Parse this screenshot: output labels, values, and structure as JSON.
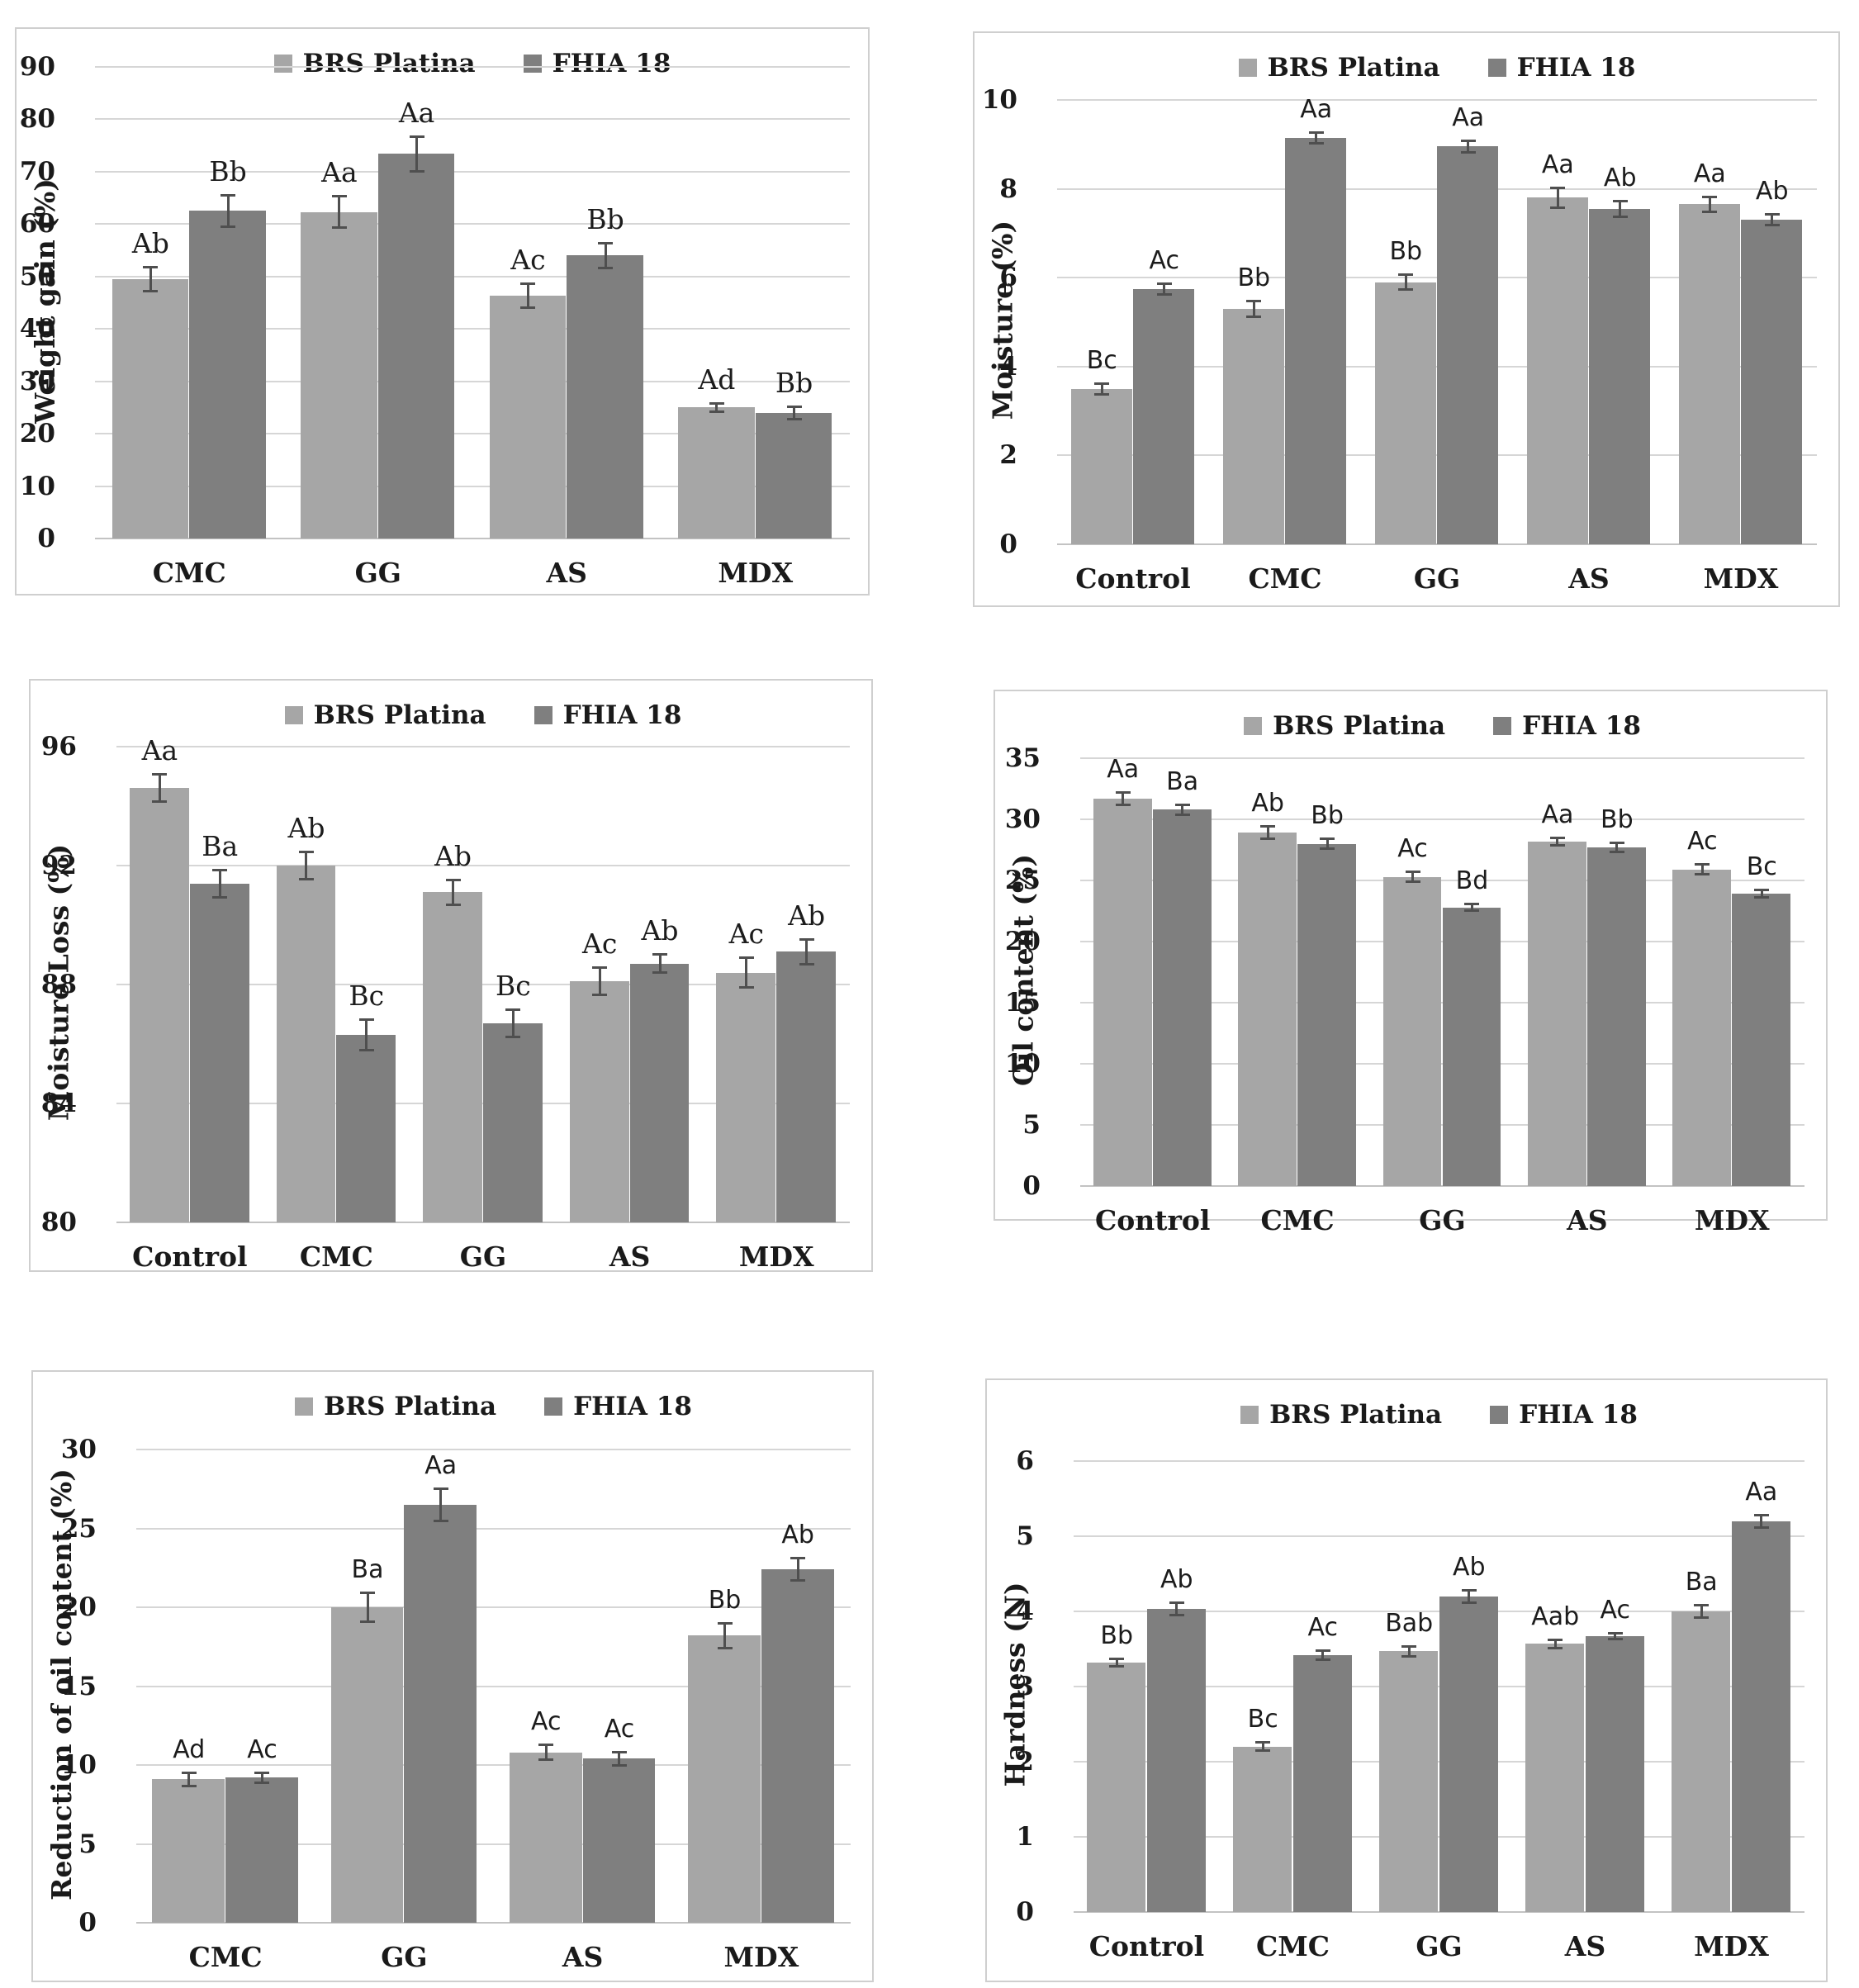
{
  "figure": {
    "description": "Six grouped bar charts comparing two banana cultivars across coating treatments",
    "series_colors": {
      "brs_platina": "#a6a6a6",
      "fhia_18": "#7f7f7f"
    },
    "error_bar_color": "#4f4f4f",
    "gridline_color": "#d6d6d6"
  },
  "chart_data": [
    {
      "type": "bar",
      "title": "",
      "ylabel": "Weight gain (%)",
      "xlabel": "",
      "ylim": [
        0,
        90
      ],
      "ystep": 10,
      "grid": true,
      "legend_position": "top-center",
      "annotation_font": "serif",
      "categories": [
        "CMC",
        "GG",
        "AS",
        "MDX"
      ],
      "series": [
        {
          "name": "BRS Platina",
          "color": "#a6a6a6",
          "values": [
            49.5,
            62.3,
            46.3,
            25.0
          ],
          "errors": [
            2.5,
            3.2,
            2.5,
            1.0
          ],
          "sig_labels": [
            "Ab",
            "Aa",
            "Ac",
            "Ad"
          ]
        },
        {
          "name": "FHIA 18",
          "color": "#7f7f7f",
          "values": [
            62.5,
            73.4,
            54.0,
            24.0
          ],
          "errors": [
            3.2,
            3.5,
            2.6,
            1.4
          ],
          "sig_labels": [
            "Bb",
            "Aa",
            "Bb",
            "Bb"
          ]
        }
      ]
    },
    {
      "type": "bar",
      "title": "",
      "ylabel": "Moisture (%)",
      "xlabel": "",
      "ylim": [
        0,
        10
      ],
      "ystep": 2,
      "grid": true,
      "legend_position": "top-center",
      "annotation_font": "sans",
      "categories": [
        "Control",
        "CMC",
        "GG",
        "AS",
        "MDX"
      ],
      "series": [
        {
          "name": "BRS Platina",
          "color": "#a6a6a6",
          "values": [
            3.5,
            5.3,
            5.9,
            7.8,
            7.65
          ],
          "errors": [
            0.15,
            0.2,
            0.2,
            0.25,
            0.2
          ],
          "sig_labels": [
            "Bc",
            "Bb",
            "Bb",
            "Aa",
            "Aa"
          ]
        },
        {
          "name": "FHIA 18",
          "color": "#7f7f7f",
          "values": [
            5.75,
            9.15,
            8.95,
            7.55,
            7.3
          ],
          "errors": [
            0.15,
            0.15,
            0.15,
            0.2,
            0.15
          ],
          "sig_labels": [
            "Ac",
            "Aa",
            "Aa",
            "Ab",
            "Ab"
          ]
        }
      ]
    },
    {
      "type": "bar",
      "title": "",
      "ylabel": "Moisture Loss (%)",
      "xlabel": "",
      "ylim": [
        80,
        96
      ],
      "ystep": 4,
      "grid": true,
      "legend_position": "top-center",
      "annotation_font": "serif",
      "categories": [
        "Control",
        "CMC",
        "GG",
        "AS",
        "MDX"
      ],
      "series": [
        {
          "name": "BRS Platina",
          "color": "#a6a6a6",
          "values": [
            94.6,
            92.0,
            91.1,
            88.1,
            88.4
          ],
          "errors": [
            0.5,
            0.5,
            0.45,
            0.5,
            0.55
          ],
          "sig_labels": [
            "Aa",
            "Ab",
            "Ab",
            "Ac",
            "Ac"
          ]
        },
        {
          "name": "FHIA 18",
          "color": "#7f7f7f",
          "values": [
            91.4,
            86.3,
            86.7,
            88.7,
            89.1
          ],
          "errors": [
            0.5,
            0.55,
            0.5,
            0.35,
            0.45
          ],
          "sig_labels": [
            "Ba",
            "Bc",
            "Bc",
            "Ab",
            "Ab"
          ]
        }
      ]
    },
    {
      "type": "bar",
      "title": "",
      "ylabel": "Oil content (%)",
      "xlabel": "",
      "ylim": [
        0,
        35
      ],
      "ystep": 5,
      "grid": true,
      "legend_position": "top-center",
      "annotation_font": "sans",
      "categories": [
        "Control",
        "CMC",
        "GG",
        "AS",
        "MDX"
      ],
      "series": [
        {
          "name": "BRS Platina",
          "color": "#a6a6a6",
          "values": [
            31.7,
            28.9,
            25.3,
            28.2,
            25.9
          ],
          "errors": [
            0.6,
            0.6,
            0.5,
            0.4,
            0.5
          ],
          "sig_labels": [
            "Aa",
            "Ab",
            "Ac",
            "Aa",
            "Ac"
          ]
        },
        {
          "name": "FHIA 18",
          "color": "#7f7f7f",
          "values": [
            30.8,
            28.0,
            22.8,
            27.7,
            23.9
          ],
          "errors": [
            0.5,
            0.5,
            0.4,
            0.5,
            0.4
          ],
          "sig_labels": [
            "Ba",
            "Bb",
            "Bd",
            "Bb",
            "Bc"
          ]
        }
      ]
    },
    {
      "type": "bar",
      "title": "",
      "ylabel": "Reduction of oil content (%)",
      "xlabel": "",
      "ylim": [
        0,
        30
      ],
      "ystep": 5,
      "grid": true,
      "legend_position": "top-center",
      "annotation_font": "sans",
      "categories": [
        "CMC",
        "GG",
        "AS",
        "MDX"
      ],
      "series": [
        {
          "name": "BRS Platina",
          "color": "#a6a6a6",
          "values": [
            9.1,
            20.0,
            10.8,
            18.2
          ],
          "errors": [
            0.5,
            1.0,
            0.55,
            0.85
          ],
          "sig_labels": [
            "Ad",
            "Ba",
            "Ac",
            "Bb"
          ]
        },
        {
          "name": "FHIA 18",
          "color": "#7f7f7f",
          "values": [
            9.2,
            26.5,
            10.4,
            22.4
          ],
          "errors": [
            0.4,
            1.1,
            0.5,
            0.8
          ],
          "sig_labels": [
            "Ac",
            "Aa",
            "Ac",
            "Ab"
          ]
        }
      ]
    },
    {
      "type": "bar",
      "title": "",
      "ylabel": "Hardness (N)",
      "xlabel": "",
      "ylim": [
        0,
        6
      ],
      "ystep": 1,
      "grid": true,
      "legend_position": "top-center",
      "annotation_font": "sans",
      "categories": [
        "Control",
        "CMC",
        "GG",
        "AS",
        "MDX"
      ],
      "series": [
        {
          "name": "BRS Platina",
          "color": "#a6a6a6",
          "values": [
            3.32,
            2.2,
            3.47,
            3.57,
            4.0
          ],
          "errors": [
            0.07,
            0.07,
            0.08,
            0.07,
            0.1
          ],
          "sig_labels": [
            "Bb",
            "Bc",
            "Bab",
            "Aab",
            "Ba"
          ]
        },
        {
          "name": "FHIA 18",
          "color": "#7f7f7f",
          "values": [
            4.03,
            3.42,
            4.2,
            3.67,
            5.2
          ],
          "errors": [
            0.1,
            0.08,
            0.1,
            0.05,
            0.1
          ],
          "sig_labels": [
            "Ab",
            "Ac",
            "Ab",
            "Ac",
            "Aa"
          ]
        }
      ]
    }
  ]
}
